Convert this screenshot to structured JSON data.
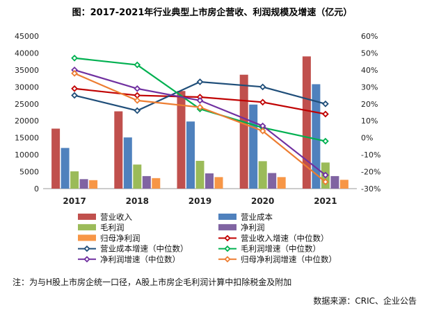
{
  "chart_data": {
    "type": "bar",
    "title": "图：2017-2021年行业典型上市房企营收、利润规模及增速（亿元）",
    "categories": [
      "2017",
      "2018",
      "2019",
      "2020",
      "2021"
    ],
    "y_left": {
      "min": 0,
      "max": 45000,
      "step": 5000,
      "ticks": [
        "0",
        "5000",
        "10000",
        "15000",
        "20000",
        "25000",
        "30000",
        "35000",
        "40000",
        "45000"
      ]
    },
    "y_right": {
      "min": -30,
      "max": 60,
      "step": 10,
      "ticks": [
        "-30%",
        "-20%",
        "-10%",
        "0%",
        "10%",
        "20%",
        "30%",
        "40%",
        "50%",
        "60%"
      ]
    },
    "bar_series": [
      {
        "name": "营业收入",
        "color": "#C0504D",
        "values": [
          17700,
          22800,
          28800,
          33600,
          39000
        ]
      },
      {
        "name": "营业成本",
        "color": "#4F81BD",
        "values": [
          12000,
          15100,
          19800,
          24800,
          30800
        ]
      },
      {
        "name": "毛利润",
        "color": "#9BBB59",
        "values": [
          5100,
          7100,
          8200,
          8100,
          7700
        ]
      },
      {
        "name": "净利润",
        "color": "#8064A2",
        "values": [
          2800,
          3700,
          4500,
          4600,
          3700
        ]
      },
      {
        "name": "归母净利润",
        "color": "#F79646",
        "values": [
          2500,
          3100,
          3400,
          3400,
          2600
        ]
      }
    ],
    "line_series": [
      {
        "name": "营业收入增速（中位数）",
        "color": "#C00000",
        "values": [
          29,
          25,
          24,
          21,
          14
        ]
      },
      {
        "name": "营业成本增速（中位数）",
        "color": "#1F4E79",
        "values": [
          25,
          16,
          33,
          30,
          20
        ]
      },
      {
        "name": "毛利润增速（中位数）",
        "color": "#00B050",
        "values": [
          47,
          43,
          17,
          6,
          -2
        ]
      },
      {
        "name": "净利润增速（中位数）",
        "color": "#7030A0",
        "values": [
          40,
          29,
          22,
          7,
          -22
        ]
      },
      {
        "name": "归母净利润增速（中位数）",
        "color": "#ED7D31",
        "values": [
          38,
          22,
          18,
          4,
          -26
        ]
      }
    ],
    "legend_order": [
      "营业收入",
      "营业成本",
      "毛利润",
      "净利润",
      "归母净利润",
      "营业收入增速（中位数）",
      "营业成本增速（中位数）",
      "毛利润增速（中位数）",
      "净利润增速（中位数）",
      "归母净利润增速（中位数）"
    ]
  },
  "note": "注：为与H股上市房企统一口径，A股上市房企毛利润计算中扣除税金及附加",
  "source": "数据来源：CRIC、企业公告"
}
